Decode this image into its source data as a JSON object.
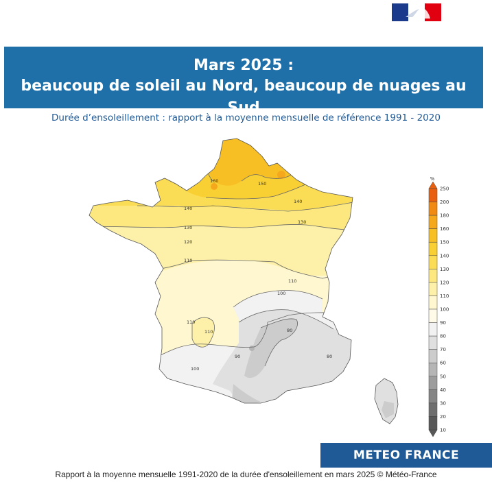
{
  "header": {
    "title_line1": "Mars 2025 :",
    "title_line2": "beaucoup de soleil au Nord, beaucoup de nuages au Sud",
    "subtitle": "Durée d’ensoleillement : rapport à la moyenne mensuelle de référence 1991 - 2020"
  },
  "map": {
    "contour_labels": [
      "160",
      "150",
      "140",
      "140",
      "130",
      "130",
      "120",
      "110",
      "110",
      "100",
      "110",
      "110",
      "100",
      "90",
      "80",
      "80"
    ]
  },
  "legend": {
    "unit": "%",
    "levels": [
      "250",
      "200",
      "180",
      "160",
      "150",
      "140",
      "130",
      "120",
      "110",
      "100",
      "90",
      "80",
      "70",
      "60",
      "50",
      "40",
      "30",
      "20",
      "10"
    ],
    "colors": [
      "#e8600f",
      "#f08a12",
      "#f5a81c",
      "#f7bf24",
      "#f9d033",
      "#fbdd55",
      "#fce87e",
      "#fdf0a8",
      "#fef7cf",
      "#fffbe8",
      "#f2f2f2",
      "#e0e0e0",
      "#cccccc",
      "#b5b5b5",
      "#9c9c9c",
      "#858585",
      "#6e6e6e",
      "#585858"
    ]
  },
  "brand": {
    "name": "METEO FRANCE"
  },
  "caption": "Rapport à la moyenne mensuelle 1991-2020 de la durée d'ensoleillement en mars 2025 © Météo-France"
}
